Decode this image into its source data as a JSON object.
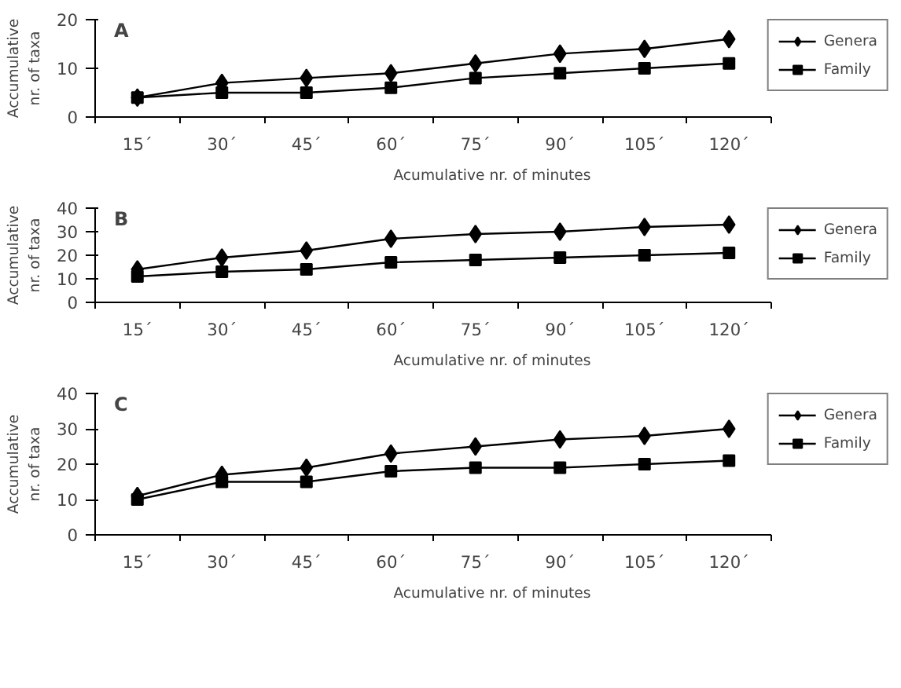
{
  "chart_data": [
    {
      "type": "line",
      "title": "A",
      "categories": [
        "15´",
        "30´",
        "45´",
        "60´",
        "75´",
        "90´",
        "105´",
        "120´"
      ],
      "xlabel": "Acumulative nr. of minutes",
      "ylabel": "Accumulative\nnr. of taxa",
      "ylim": [
        0,
        20
      ],
      "yticks": [
        0,
        10,
        20
      ],
      "grid": false,
      "legend": "right",
      "series": [
        {
          "name": "Genera",
          "color": "#000000",
          "marker": "diamond",
          "values": [
            4,
            7,
            8,
            9,
            11,
            13,
            14,
            16
          ]
        },
        {
          "name": "Family",
          "color": "#000000",
          "marker": "square",
          "values": [
            4,
            5,
            5,
            6,
            8,
            9,
            10,
            11
          ]
        }
      ]
    },
    {
      "type": "line",
      "title": "B",
      "categories": [
        "15´",
        "30´",
        "45´",
        "60´",
        "75´",
        "90´",
        "105´",
        "120´"
      ],
      "xlabel": "Acumulative nr. of minutes",
      "ylabel": "Accumulative\nnr. of taxa",
      "ylim": [
        0,
        40
      ],
      "yticks": [
        0,
        10,
        20,
        30,
        40
      ],
      "grid": false,
      "legend": "right",
      "series": [
        {
          "name": "Genera",
          "color": "#000000",
          "marker": "diamond",
          "values": [
            14,
            19,
            22,
            27,
            29,
            30,
            32,
            33
          ]
        },
        {
          "name": "Family",
          "color": "#000000",
          "marker": "square",
          "values": [
            11,
            13,
            14,
            17,
            18,
            19,
            20,
            21
          ]
        }
      ]
    },
    {
      "type": "line",
      "title": "C",
      "categories": [
        "15´",
        "30´",
        "45´",
        "60´",
        "75´",
        "90´",
        "105´",
        "120´"
      ],
      "xlabel": "Acumulative nr. of minutes",
      "ylabel": "Accumulative\nnr. of taxa",
      "ylim": [
        0,
        40
      ],
      "yticks": [
        0,
        10,
        20,
        30,
        40
      ],
      "grid": false,
      "legend": "right",
      "series": [
        {
          "name": "Genera",
          "color": "#000000",
          "marker": "diamond",
          "values": [
            11,
            17,
            19,
            23,
            25,
            27,
            28,
            30
          ]
        },
        {
          "name": "Family",
          "color": "#000000",
          "marker": "square",
          "values": [
            10,
            15,
            15,
            18,
            19,
            19,
            20,
            21
          ]
        }
      ]
    }
  ]
}
